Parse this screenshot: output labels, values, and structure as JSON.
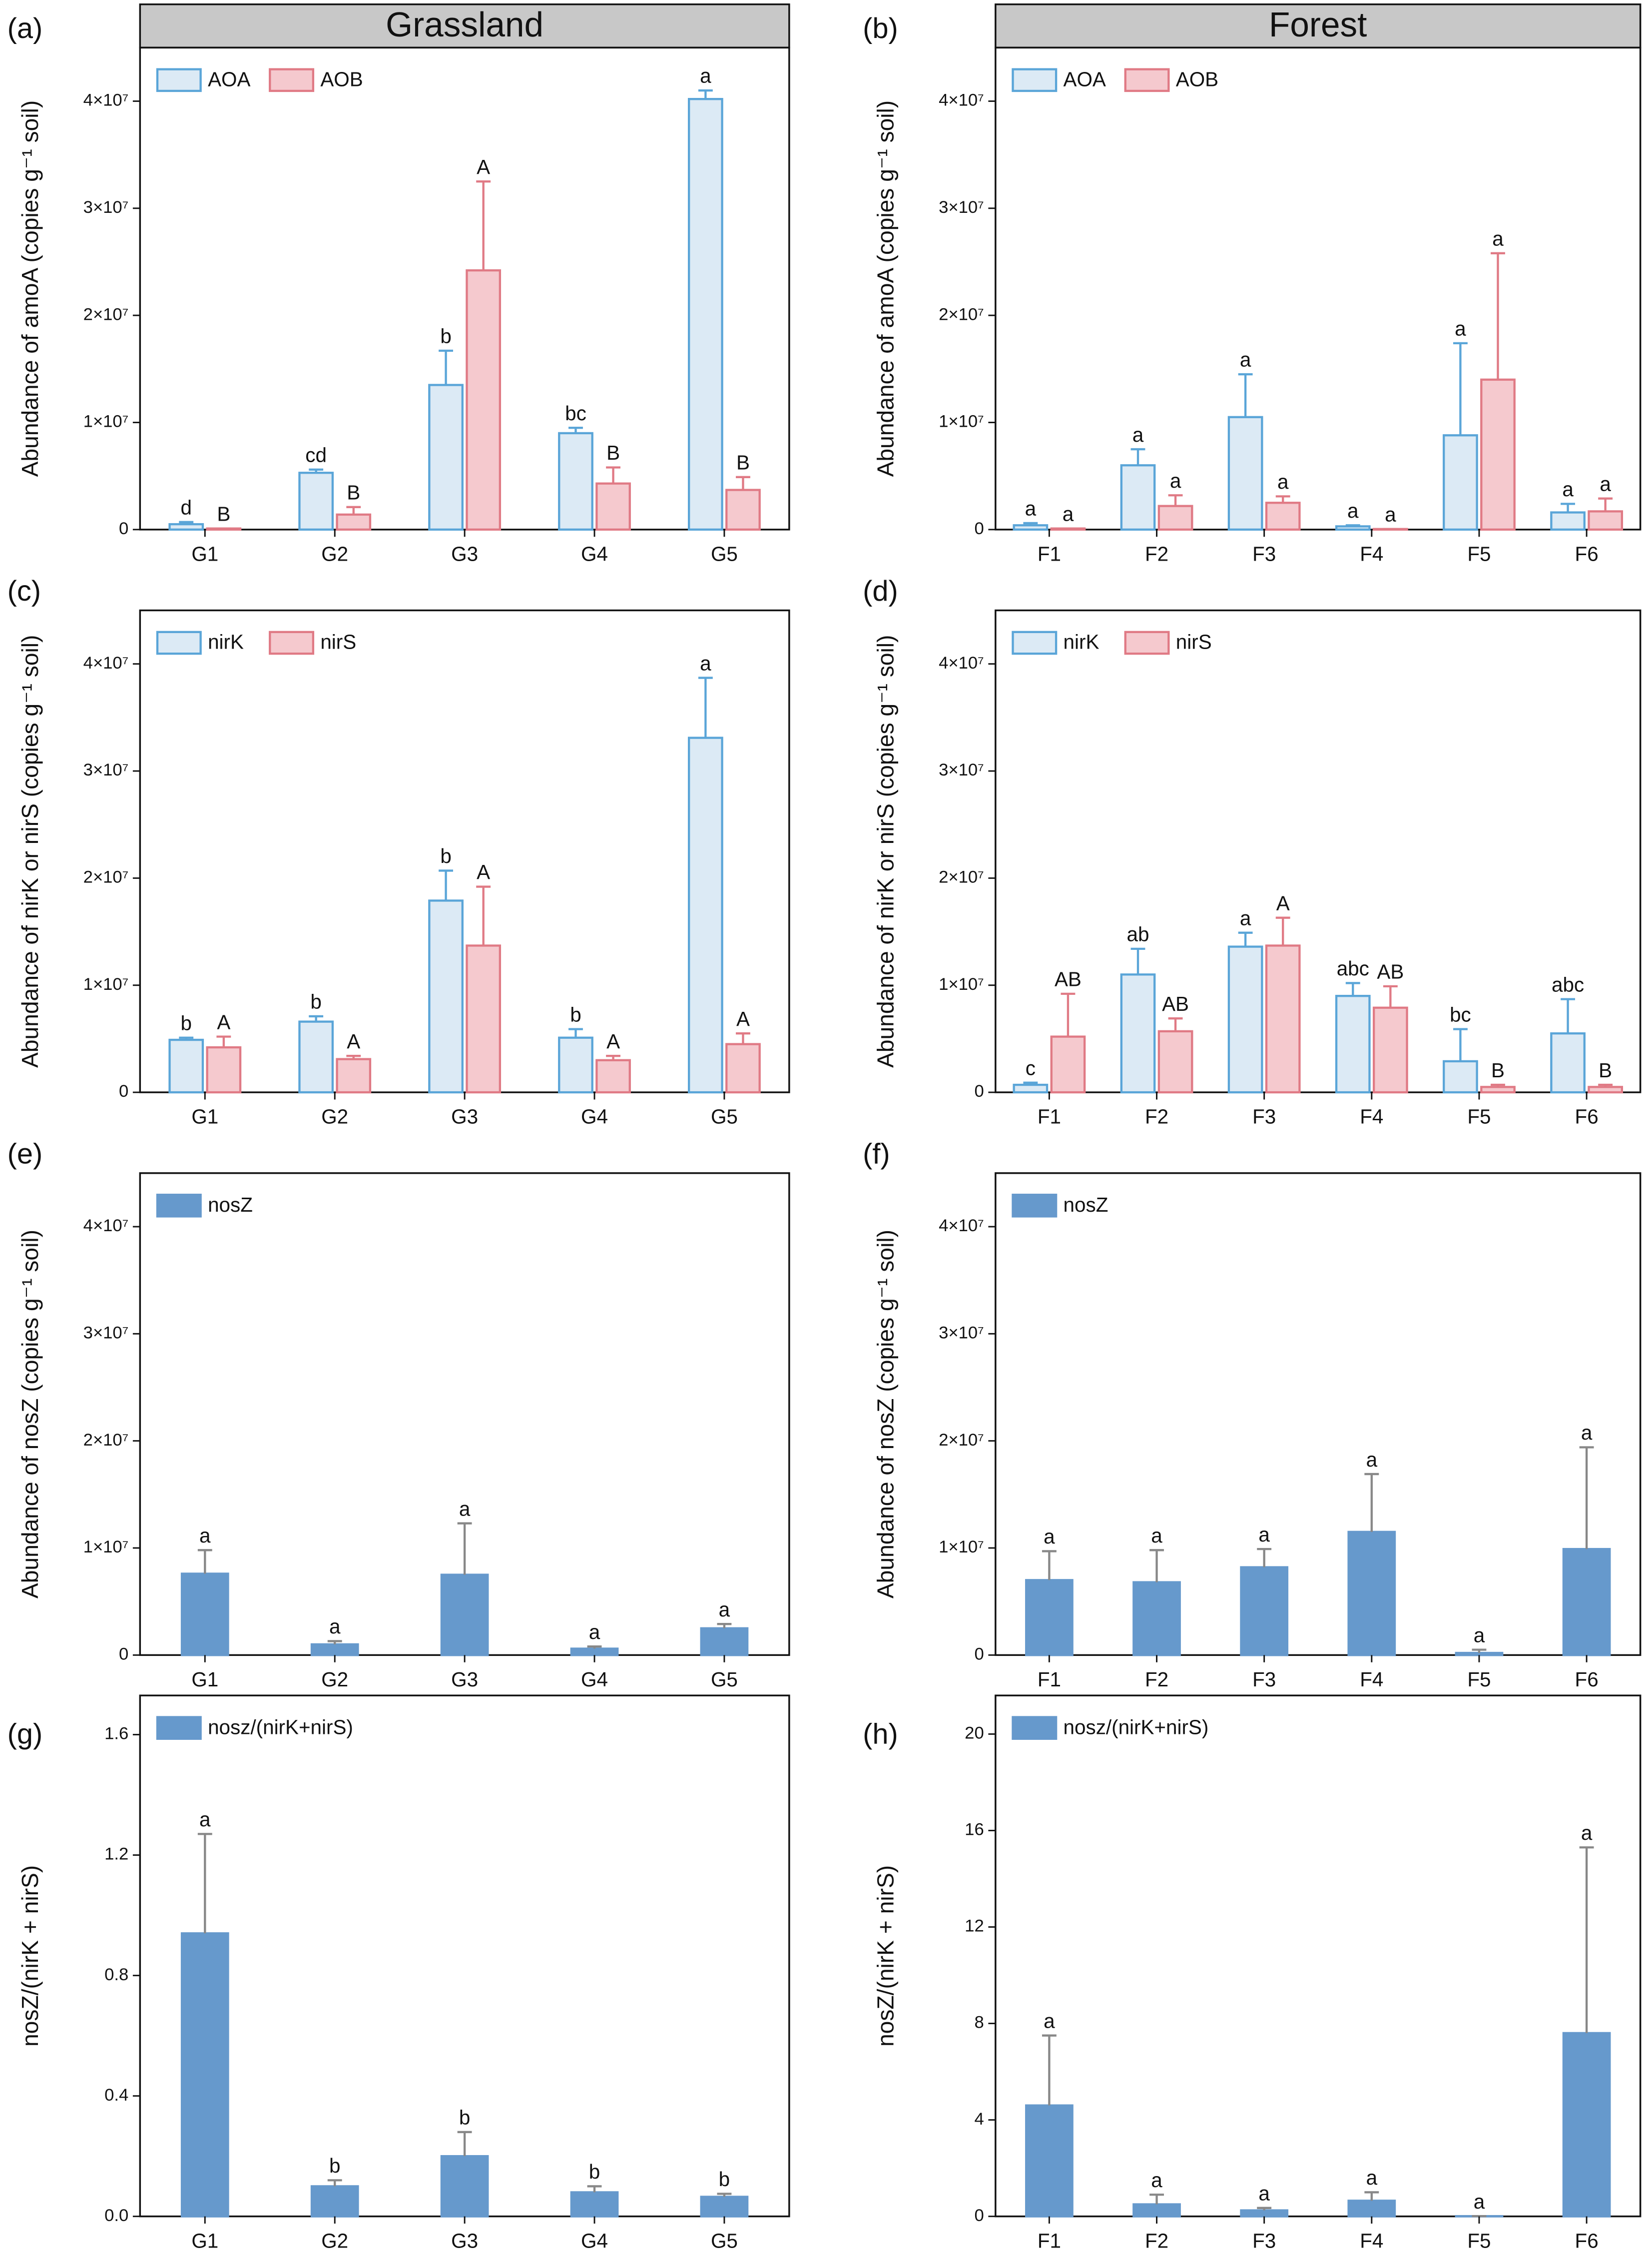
{
  "chart_data": [
    {
      "type": "bar",
      "panel": "(a)",
      "header": "Grassland",
      "ylabel": "Abundance of amoA (copies g⁻¹ soil)",
      "categories": [
        "G1",
        "G2",
        "G3",
        "G4",
        "G5"
      ],
      "ylim": [
        0,
        45000000
      ],
      "yticks": [
        {
          "value": 0,
          "label": "0"
        },
        {
          "value": 10000000,
          "label": "1×10⁷"
        },
        {
          "value": 20000000,
          "label": "2×10⁷"
        },
        {
          "value": 30000000,
          "label": "3×10⁷"
        },
        {
          "value": 40000000,
          "label": "4×10⁷"
        }
      ],
      "series": [
        {
          "name": "AOA",
          "color": "#dceaf5",
          "edgecolor": "#5aa5d8",
          "errorcolor": "#5aa5d8",
          "values": [
            500000,
            5300000,
            13500000,
            9000000,
            40200000
          ],
          "errors": [
            200000,
            300000,
            3200000,
            500000,
            800000
          ],
          "letters": [
            "d",
            "cd",
            "b",
            "bc",
            "a"
          ]
        },
        {
          "name": "AOB",
          "color": "#f5c9ce",
          "edgecolor": "#e07a85",
          "errorcolor": "#e07a85",
          "values": [
            100000,
            1400000,
            24200000,
            4300000,
            3700000
          ],
          "errors": [
            0,
            700000,
            8300000,
            1500000,
            1200000
          ],
          "letters": [
            "B",
            "B",
            "A",
            "B",
            "B"
          ]
        }
      ]
    },
    {
      "type": "bar",
      "panel": "(b)",
      "header": "Forest",
      "ylabel": "Abundance of amoA (copies g⁻¹ soil)",
      "categories": [
        "F1",
        "F2",
        "F3",
        "F4",
        "F5",
        "F6"
      ],
      "ylim": [
        0,
        45000000
      ],
      "yticks": [
        {
          "value": 0,
          "label": "0"
        },
        {
          "value": 10000000,
          "label": "1×10⁷"
        },
        {
          "value": 20000000,
          "label": "2×10⁷"
        },
        {
          "value": 30000000,
          "label": "3×10⁷"
        },
        {
          "value": 40000000,
          "label": "4×10⁷"
        }
      ],
      "series": [
        {
          "name": "AOA",
          "color": "#dceaf5",
          "edgecolor": "#5aa5d8",
          "errorcolor": "#5aa5d8",
          "values": [
            400000,
            6000000,
            10500000,
            300000,
            8800000,
            1600000
          ],
          "errors": [
            200000,
            1500000,
            4000000,
            100000,
            8600000,
            800000
          ],
          "letters": [
            "a",
            "a",
            "a",
            "a",
            "a",
            "a"
          ]
        },
        {
          "name": "AOB",
          "color": "#f5c9ce",
          "edgecolor": "#e07a85",
          "errorcolor": "#e07a85",
          "values": [
            100000,
            2200000,
            2500000,
            50000,
            14000000,
            1700000
          ],
          "errors": [
            0,
            1000000,
            600000,
            0,
            11800000,
            1200000
          ],
          "letters": [
            "a",
            "a",
            "a",
            "a",
            "a",
            "a"
          ]
        }
      ]
    },
    {
      "type": "bar",
      "panel": "(c)",
      "ylabel": "Abundance of nirK or nirS (copies g⁻¹ soil)",
      "categories": [
        "G1",
        "G2",
        "G3",
        "G4",
        "G5"
      ],
      "ylim": [
        0,
        45000000
      ],
      "yticks": [
        {
          "value": 0,
          "label": "0"
        },
        {
          "value": 10000000,
          "label": "1×10⁷"
        },
        {
          "value": 20000000,
          "label": "2×10⁷"
        },
        {
          "value": 30000000,
          "label": "3×10⁷"
        },
        {
          "value": 40000000,
          "label": "4×10⁷"
        }
      ],
      "series": [
        {
          "name": "nirK",
          "color": "#dceaf5",
          "edgecolor": "#5aa5d8",
          "errorcolor": "#5aa5d8",
          "values": [
            4900000,
            6600000,
            17900000,
            5100000,
            33100000
          ],
          "errors": [
            200000,
            500000,
            2800000,
            800000,
            5600000
          ],
          "letters": [
            "b",
            "b",
            "b",
            "b",
            "a"
          ]
        },
        {
          "name": "nirS",
          "color": "#f5c9ce",
          "edgecolor": "#e07a85",
          "errorcolor": "#e07a85",
          "values": [
            4200000,
            3100000,
            13700000,
            3000000,
            4500000
          ],
          "errors": [
            1000000,
            300000,
            5500000,
            400000,
            1000000
          ],
          "letters": [
            "A",
            "A",
            "A",
            "A",
            "A"
          ]
        }
      ]
    },
    {
      "type": "bar",
      "panel": "(d)",
      "ylabel": "Abundance of nirK or nirS (copies g⁻¹ soil)",
      "categories": [
        "F1",
        "F2",
        "F3",
        "F4",
        "F5",
        "F6"
      ],
      "ylim": [
        0,
        45000000
      ],
      "yticks": [
        {
          "value": 0,
          "label": "0"
        },
        {
          "value": 10000000,
          "label": "1×10⁷"
        },
        {
          "value": 20000000,
          "label": "2×10⁷"
        },
        {
          "value": 30000000,
          "label": "3×10⁷"
        },
        {
          "value": 40000000,
          "label": "4×10⁷"
        }
      ],
      "series": [
        {
          "name": "nirK",
          "color": "#dceaf5",
          "edgecolor": "#5aa5d8",
          "errorcolor": "#5aa5d8",
          "values": [
            700000,
            11000000,
            13600000,
            9000000,
            2900000,
            5500000
          ],
          "errors": [
            200000,
            2400000,
            1300000,
            1200000,
            3000000,
            3200000
          ],
          "letters": [
            "c",
            "ab",
            "a",
            "abc",
            "bc",
            "abc"
          ]
        },
        {
          "name": "nirS",
          "color": "#f5c9ce",
          "edgecolor": "#e07a85",
          "errorcolor": "#e07a85",
          "values": [
            5200000,
            5700000,
            13700000,
            7900000,
            500000,
            500000
          ],
          "errors": [
            4000000,
            1200000,
            2600000,
            2000000,
            200000,
            200000
          ],
          "letters": [
            "AB",
            "AB",
            "A",
            "AB",
            "B",
            "B"
          ]
        }
      ]
    },
    {
      "type": "bar",
      "panel": "(e)",
      "ylabel": "Abundance of nosZ (copies g⁻¹ soil)",
      "categories": [
        "G1",
        "G2",
        "G3",
        "G4",
        "G5"
      ],
      "ylim": [
        0,
        45000000
      ],
      "yticks": [
        {
          "value": 0,
          "label": "0"
        },
        {
          "value": 10000000,
          "label": "1×10⁷"
        },
        {
          "value": 20000000,
          "label": "2×10⁷"
        },
        {
          "value": 30000000,
          "label": "3×10⁷"
        },
        {
          "value": 40000000,
          "label": "4×10⁷"
        }
      ],
      "series": [
        {
          "name": "nosZ",
          "color": "#6699cc",
          "edgecolor": "#6699cc",
          "errorcolor": "#888888",
          "values": [
            7600000,
            1000000,
            7500000,
            600000,
            2500000
          ],
          "errors": [
            2200000,
            300000,
            4800000,
            200000,
            400000
          ],
          "letters": [
            "a",
            "a",
            "a",
            "a",
            "a"
          ]
        }
      ]
    },
    {
      "type": "bar",
      "panel": "(f)",
      "ylabel": "Abundance of nosZ (copies g⁻¹ soil)",
      "categories": [
        "F1",
        "F2",
        "F3",
        "F4",
        "F5",
        "F6"
      ],
      "ylim": [
        0,
        45000000
      ],
      "yticks": [
        {
          "value": 0,
          "label": "0"
        },
        {
          "value": 10000000,
          "label": "1×10⁷"
        },
        {
          "value": 20000000,
          "label": "2×10⁷"
        },
        {
          "value": 30000000,
          "label": "3×10⁷"
        },
        {
          "value": 40000000,
          "label": "4×10⁷"
        }
      ],
      "series": [
        {
          "name": "nosZ",
          "color": "#6699cc",
          "edgecolor": "#6699cc",
          "errorcolor": "#888888",
          "values": [
            7000000,
            6800000,
            8200000,
            11500000,
            200000,
            9900000
          ],
          "errors": [
            2700000,
            3000000,
            1700000,
            5400000,
            300000,
            9500000
          ],
          "letters": [
            "a",
            "a",
            "a",
            "a",
            "a",
            "a"
          ]
        }
      ]
    },
    {
      "type": "bar",
      "panel": "(g)",
      "ylabel": "nosZ/(nirK + nirS)",
      "categories": [
        "G1",
        "G2",
        "G3",
        "G4",
        "G5"
      ],
      "ylim": [
        0,
        1.73
      ],
      "yticks": [
        {
          "value": 0,
          "label": "0.0"
        },
        0.4,
        0.8,
        1.2,
        1.6
      ],
      "series": [
        {
          "name": "nosz/(nirK+nirS)",
          "color": "#6699cc",
          "edgecolor": "#6699cc",
          "errorcolor": "#888888",
          "values": [
            0.94,
            0.1,
            0.2,
            0.08,
            0.065
          ],
          "errors": [
            0.33,
            0.02,
            0.08,
            0.02,
            0.01
          ],
          "letters": [
            "a",
            "b",
            "b",
            "b",
            "b"
          ]
        }
      ]
    },
    {
      "type": "bar",
      "panel": "(h)",
      "ylabel": "nosZ/(nirK + nirS)",
      "categories": [
        "F1",
        "F2",
        "F3",
        "F4",
        "F5",
        "F6"
      ],
      "ylim": [
        0,
        21.6
      ],
      "yticks": [
        0,
        4,
        8,
        12,
        16,
        20
      ],
      "series": [
        {
          "name": "nosz/(nirK+nirS)",
          "color": "#6699cc",
          "edgecolor": "#6699cc",
          "errorcolor": "#888888",
          "values": [
            4.6,
            0.5,
            0.25,
            0.65,
            0.01,
            7.6
          ],
          "errors": [
            2.9,
            0.4,
            0.1,
            0.35,
            0,
            7.7
          ],
          "letters": [
            "a",
            "a",
            "a",
            "a",
            "a",
            "a"
          ]
        }
      ]
    }
  ]
}
